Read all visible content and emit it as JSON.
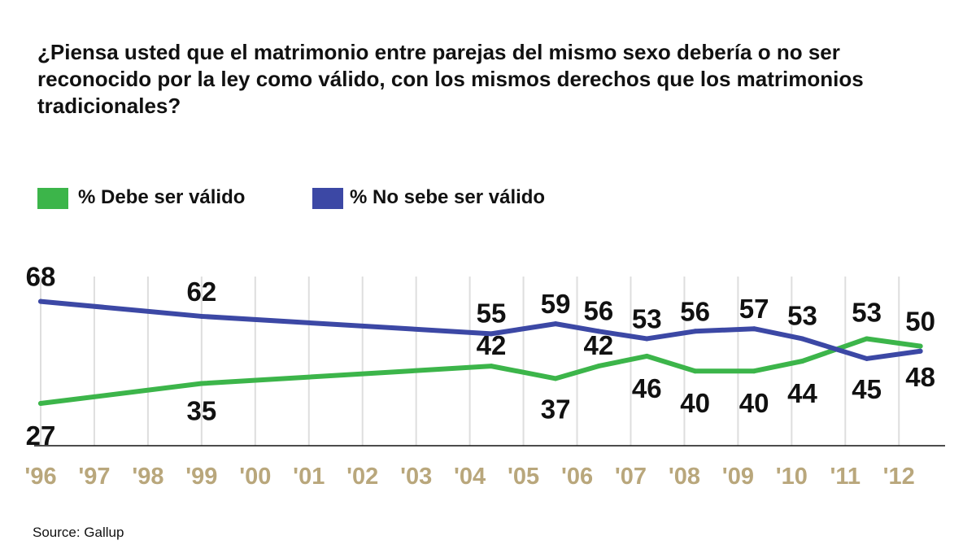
{
  "title": "¿Piensa usted que el matrimonio entre parejas del mismo sexo debería o no ser reconocido por la ley como válido, con los mismos derechos que los matrimonios tradicionales?",
  "source": "Source: Gallup",
  "colors": {
    "green": "#3cb54a",
    "blue": "#3c48a5",
    "tick": "#b9a77c",
    "grid": "#dedede"
  },
  "chart_data": {
    "type": "line",
    "title": "¿Piensa usted que el matrimonio entre parejas del mismo sexo debería o no ser reconocido por la ley como válido, con los mismos derechos que los matrimonios tradicionales?",
    "xlabel": "",
    "ylabel": "",
    "xlim": [
      1996,
      2012.8
    ],
    "ylim": [
      10,
      78
    ],
    "grid": true,
    "legend_position": "top-left",
    "x_ticks": [
      "'96",
      "'97",
      "'98",
      "'99",
      "'00",
      "'01",
      "'02",
      "'03",
      "'04",
      "'05",
      "'06",
      "'07",
      "'08",
      "'09",
      "'10",
      "'11",
      "'12"
    ],
    "series": [
      {
        "name": "% Debe ser válido",
        "color": "#3cb54a",
        "x": [
          1996,
          1999,
          2004.4,
          2005.6,
          2006.4,
          2007.3,
          2008.2,
          2009.3,
          2010.2,
          2011.4,
          2012.4
        ],
        "y": [
          27,
          35,
          42,
          37,
          42,
          46,
          40,
          40,
          44,
          53,
          50
        ],
        "labels": [
          "27",
          "35",
          "42",
          "37",
          "42",
          "46",
          "40",
          "40",
          "44",
          "53",
          "50"
        ]
      },
      {
        "name": "% No sebe ser válido",
        "color": "#3c48a5",
        "x": [
          1996,
          1999,
          2004.4,
          2005.6,
          2006.4,
          2007.3,
          2008.2,
          2009.3,
          2010.2,
          2011.4,
          2012.4
        ],
        "y": [
          68,
          62,
          55,
          59,
          56,
          53,
          56,
          57,
          53,
          45,
          48
        ],
        "labels": [
          "68",
          "62",
          "55",
          "59",
          "56",
          "53",
          "56",
          "57",
          "53",
          "45",
          "48"
        ]
      }
    ]
  }
}
